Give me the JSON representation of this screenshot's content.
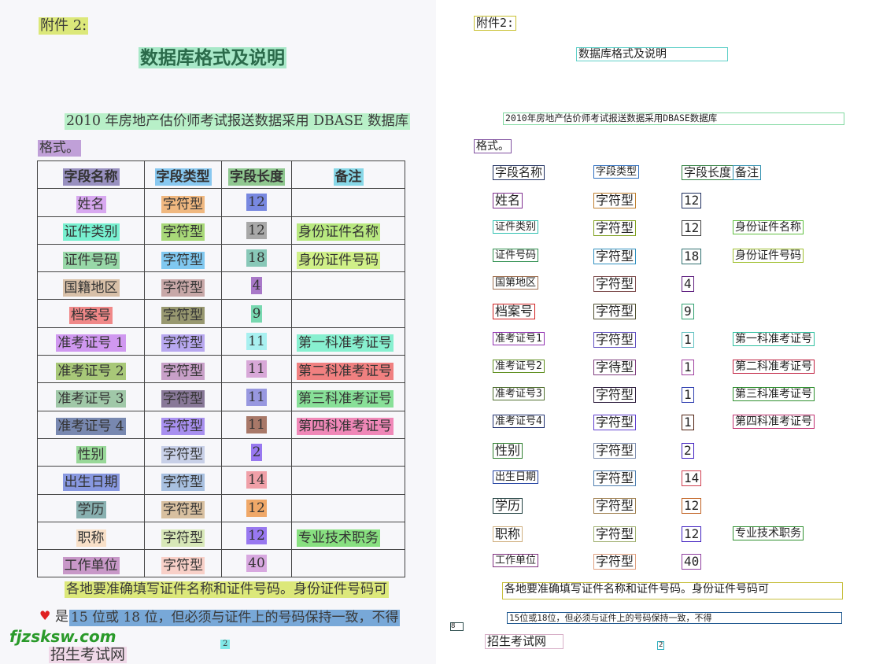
{
  "left": {
    "attachment": {
      "text": "附件 2:",
      "color": "#dce87a"
    },
    "title": {
      "text": "数据库格式及说明",
      "color": "#a8e8c8"
    },
    "intro1": {
      "text": "2010 年房地产估价师考试报送数据采用 DBASE 数据库",
      "color": "#b8f0c8"
    },
    "intro2": {
      "text": "格式。",
      "color": "#c0a0d8"
    },
    "footer1": {
      "text": "各地要准确填写证件名称和证件号码。身份证件号码可",
      "color": "#dce87a"
    },
    "footer2_prefix": "是",
    "footer2": {
      "text": "15 位或 18 位，但必须与证件上的号码保持一致，不得",
      "color": "#78a8d8"
    },
    "watermark": "fjzsksw.com",
    "watermark_cn": {
      "text": "招生考试网",
      "color": "#f0d8e8"
    },
    "page_number": {
      "text": "2",
      "color": "#80e8e8"
    }
  },
  "table": {
    "header": [
      {
        "text": "字段名称",
        "color": "#9890c0",
        "box": "#203060"
      },
      {
        "text": "字段类型",
        "color": "#88c8f0",
        "box": "#3070c0"
      },
      {
        "text": "字段长度",
        "color": "#90c890",
        "box": "#308040"
      },
      {
        "text": "备注",
        "color": "#88d8e8",
        "box": "#3090b0"
      }
    ],
    "header_ocr": [
      "字段名称",
      "字段类型",
      "字段长度",
      "备注"
    ],
    "rows": [
      {
        "cells": [
          "姓名",
          "字符型",
          "12",
          ""
        ],
        "colors": [
          "#d8a8f0",
          "#f0b880",
          "#7888e0",
          ""
        ],
        "ocr": [
          "姓名",
          "字符型",
          "12",
          ""
        ],
        "boxes": [
          "#803090",
          "#c08030",
          "#203060",
          ""
        ]
      },
      {
        "cells": [
          "证件类别",
          "字符型",
          "12",
          "身份证件名称"
        ],
        "colors": [
          "#78f0d0",
          "#a8d878",
          "#a8a8a8",
          "#b8e880"
        ],
        "ocr": [
          "证件类别",
          "字符型",
          "12",
          "身份证件名称"
        ],
        "boxes": [
          "#30c0b0",
          "#80a020",
          "#404040",
          "#60c040"
        ]
      },
      {
        "cells": [
          "证件号码",
          "字符型",
          "18",
          "身份证件号码"
        ],
        "colors": [
          "#98d8a8",
          "#80c8f0",
          "#88c8b8",
          "#d0f088"
        ],
        "ocr": [
          "证件号码",
          "字符型",
          "18",
          "身份证件号码"
        ],
        "boxes": [
          "#309050",
          "#3090c0",
          "#307070",
          "#a0c030"
        ]
      },
      {
        "cells": [
          "国籍地区",
          "字符型",
          "4",
          ""
        ],
        "colors": [
          "#d8c0a8",
          "#c8a8a8",
          "#a878c8",
          ""
        ],
        "ocr": [
          "国第地区",
          "字符型",
          "4",
          ""
        ],
        "boxes": [
          "#a07050",
          "#805050",
          "#602080",
          ""
        ]
      },
      {
        "cells": [
          "档案号",
          "字符型",
          "9",
          ""
        ],
        "colors": [
          "#f08888",
          "#989870",
          "#78d8b0",
          ""
        ],
        "ocr": [
          "档案号",
          "字符型",
          "9",
          ""
        ],
        "boxes": [
          "#d02020",
          "#505030",
          "#30a070",
          ""
        ]
      },
      {
        "cells": [
          "准考证号 1",
          "字符型",
          "11",
          "第一科准考证号"
        ],
        "colors": [
          "#d098f0",
          "#b8a8f0",
          "#a8f0f0",
          "#88f0d0"
        ],
        "ocr": [
          "准考证号1",
          "字符型",
          "1",
          "第一科准考证号"
        ],
        "boxes": [
          "#9030b0",
          "#6050c0",
          "#60c0c0",
          "#30c0a0"
        ]
      },
      {
        "cells": [
          "准考证号 2",
          "字符型",
          "11",
          "第二科准考证号"
        ],
        "colors": [
          "#a8c878",
          "#c8a0c8",
          "#d8a8d8",
          "#f08080"
        ],
        "ocr": [
          "准考证号2",
          "字待型",
          "1",
          "第二科准考证号"
        ],
        "boxes": [
          "#609020",
          "#804080",
          "#a040a0",
          "#c02040"
        ]
      },
      {
        "cells": [
          "准考证号 3",
          "字符型",
          "11",
          "第三科准考证号"
        ],
        "colors": [
          "#a0c8a8",
          "#887898",
          "#9898e0",
          "#88e098"
        ],
        "ocr": [
          "准考证号3",
          "字符型",
          "1",
          "第三科准考证号"
        ],
        "boxes": [
          "#507030",
          "#302040",
          "#3040b0",
          "#309030"
        ]
      },
      {
        "cells": [
          "准考证号 4",
          "字符型",
          "11",
          "第四科准考证号"
        ],
        "colors": [
          "#7888b0",
          "#a890f0",
          "#a87868",
          "#f088b8"
        ],
        "ocr": [
          "准考证号4",
          "字符型",
          "1",
          "第四科准考证号"
        ],
        "boxes": [
          "#203070",
          "#6040d0",
          "#502010",
          "#c03070"
        ]
      },
      {
        "cells": [
          "性别",
          "字符型",
          "2",
          ""
        ],
        "colors": [
          "#98d898",
          "#c8d0e8",
          "#9878f0",
          ""
        ],
        "ocr": [
          "性别",
          "字符型",
          "2",
          ""
        ],
        "boxes": [
          "#308030",
          "#8090b0",
          "#4020c0",
          ""
        ]
      },
      {
        "cells": [
          "出生日期",
          "字符型",
          "14",
          ""
        ],
        "colors": [
          "#8898e0",
          "#a8c0e0",
          "#f0a0a8",
          ""
        ],
        "ocr": [
          "出生日期",
          "字符型",
          "14",
          ""
        ],
        "boxes": [
          "#2040a0",
          "#5080b0",
          "#d04050",
          ""
        ]
      },
      {
        "cells": [
          "学历",
          "字符型",
          "12",
          ""
        ],
        "colors": [
          "#88b0b0",
          "#d8c0a0",
          "#f0a868",
          ""
        ],
        "ocr": [
          "学历",
          "字符型",
          "12",
          ""
        ],
        "boxes": [
          "#204040",
          "#a08050",
          "#c06020",
          ""
        ]
      },
      {
        "cells": [
          "职称",
          "字符型",
          "12",
          "专业技术职务"
        ],
        "colors": [
          "#f8e0c8",
          "#d8e8b8",
          "#9878f0",
          "#88e080"
        ],
        "ocr": [
          "职称",
          "字符型",
          "12",
          "专业技术职务"
        ],
        "boxes": [
          "#d0b080",
          "#a0b070",
          "#4020c0",
          "#309030"
        ]
      },
      {
        "cells": [
          "工作单位",
          "字符型",
          "40",
          ""
        ],
        "colors": [
          "#c898c8",
          "#f8d0c8",
          "#d8a8e0",
          ""
        ],
        "ocr": [
          "工作单位",
          "字符型",
          "40",
          ""
        ],
        "boxes": [
          "#803080",
          "#e0a080",
          "#9040a0",
          ""
        ]
      }
    ]
  },
  "right": {
    "attachment": {
      "text": "附件2:",
      "box": "#c8c030"
    },
    "title": {
      "text": "数据库格式及说明",
      "box": "#60d0c8"
    },
    "intro1": {
      "text": "2010年房地产估价师考试报送数据采用DBASE数据库",
      "box": "#80d8a0"
    },
    "intro2": {
      "text": "格式。",
      "box": "#8050a0"
    },
    "footer1": {
      "text": "各地要准确填写证件名称和证件号码。身份证件号码可",
      "box": "#c8c040"
    },
    "footer2": {
      "text": "15位或18位，但必须与证件上的号码保持一致，不得",
      "box": "#205890"
    },
    "stray": {
      "text": "8",
      "box": "#305050"
    },
    "watermark_cn": {
      "text": "招生考试网",
      "box": "#d8b0c8"
    },
    "page_number": {
      "text": "2",
      "box": "#30b0c0"
    }
  }
}
